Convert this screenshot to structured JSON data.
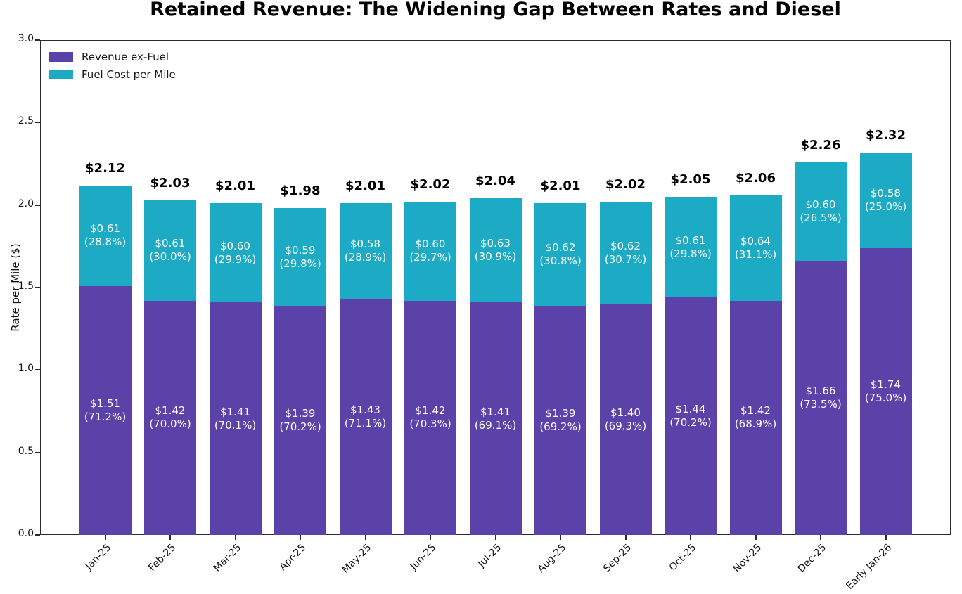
{
  "title": "Retained Revenue: The Widening Gap Between Rates and Diesel",
  "chart_data": {
    "type": "bar",
    "stacked": true,
    "title": "Retained Revenue: The Widening Gap Between Rates and Diesel",
    "xlabel": "",
    "ylabel": "Rate per Mile ($)",
    "ylim": [
      0.0,
      3.0
    ],
    "yticks": [
      0.0,
      0.5,
      1.0,
      1.5,
      2.0,
      2.5,
      3.0
    ],
    "ytick_labels": [
      "0.0",
      "0.5",
      "1.0",
      "1.5",
      "2.0",
      "2.5",
      "3.0"
    ],
    "grid": false,
    "legend_position": "upper-left",
    "categories": [
      "Jan-25",
      "Feb-25",
      "Mar-25",
      "Apr-25",
      "May-25",
      "Jun-25",
      "Jul-25",
      "Aug-25",
      "Sep-25",
      "Oct-25",
      "Nov-25",
      "Dec-25",
      "Early Jan-26"
    ],
    "series": [
      {
        "name": "Revenue ex-Fuel",
        "color": "#5B42A8",
        "values": [
          1.51,
          1.42,
          1.41,
          1.39,
          1.43,
          1.42,
          1.41,
          1.39,
          1.4,
          1.44,
          1.42,
          1.66,
          1.74
        ],
        "pct_of_total": [
          "71.2%",
          "70.0%",
          "70.1%",
          "70.2%",
          "71.1%",
          "70.3%",
          "69.1%",
          "69.2%",
          "69.3%",
          "70.2%",
          "68.9%",
          "73.5%",
          "75.0%"
        ]
      },
      {
        "name": "Fuel Cost per Mile",
        "color": "#1CAAC4",
        "values": [
          0.61,
          0.61,
          0.6,
          0.59,
          0.58,
          0.6,
          0.63,
          0.62,
          0.62,
          0.61,
          0.64,
          0.6,
          0.58
        ],
        "pct_of_total": [
          "28.8%",
          "30.0%",
          "29.9%",
          "29.8%",
          "28.9%",
          "29.7%",
          "30.9%",
          "30.8%",
          "30.7%",
          "29.8%",
          "31.1%",
          "26.5%",
          "25.0%"
        ]
      }
    ],
    "totals": [
      2.12,
      2.03,
      2.01,
      1.98,
      2.01,
      2.02,
      2.04,
      2.01,
      2.02,
      2.05,
      2.06,
      2.26,
      2.32
    ],
    "labels": {
      "totals": [
        "$2.12",
        "$2.03",
        "$2.01",
        "$1.98",
        "$2.01",
        "$2.02",
        "$2.04",
        "$2.01",
        "$2.02",
        "$2.05",
        "$2.06",
        "$2.26",
        "$2.32"
      ],
      "revenue": [
        [
          "$1.51",
          "(71.2%)"
        ],
        [
          "$1.42",
          "(70.0%)"
        ],
        [
          "$1.41",
          "(70.1%)"
        ],
        [
          "$1.39",
          "(70.2%)"
        ],
        [
          "$1.43",
          "(71.1%)"
        ],
        [
          "$1.42",
          "(70.3%)"
        ],
        [
          "$1.41",
          "(69.1%)"
        ],
        [
          "$1.39",
          "(69.2%)"
        ],
        [
          "$1.40",
          "(69.3%)"
        ],
        [
          "$1.44",
          "(70.2%)"
        ],
        [
          "$1.42",
          "(68.9%)"
        ],
        [
          "$1.66",
          "(73.5%)"
        ],
        [
          "$1.74",
          "(75.0%)"
        ]
      ],
      "fuel": [
        [
          "$0.61",
          "(28.8%)"
        ],
        [
          "$0.61",
          "(30.0%)"
        ],
        [
          "$0.60",
          "(29.9%)"
        ],
        [
          "$0.59",
          "(29.8%)"
        ],
        [
          "$0.58",
          "(28.9%)"
        ],
        [
          "$0.60",
          "(29.7%)"
        ],
        [
          "$0.63",
          "(30.9%)"
        ],
        [
          "$0.62",
          "(30.8%)"
        ],
        [
          "$0.62",
          "(30.7%)"
        ],
        [
          "$0.61",
          "(29.8%)"
        ],
        [
          "$0.64",
          "(31.1%)"
        ],
        [
          "$0.60",
          "(26.5%)"
        ],
        [
          "$0.58",
          "(25.0%)"
        ]
      ]
    },
    "legend": {
      "entries": [
        {
          "label": "Revenue ex-Fuel",
          "color": "#5B42A8"
        },
        {
          "label": "Fuel Cost per Mile",
          "color": "#1CAAC4"
        }
      ]
    }
  }
}
